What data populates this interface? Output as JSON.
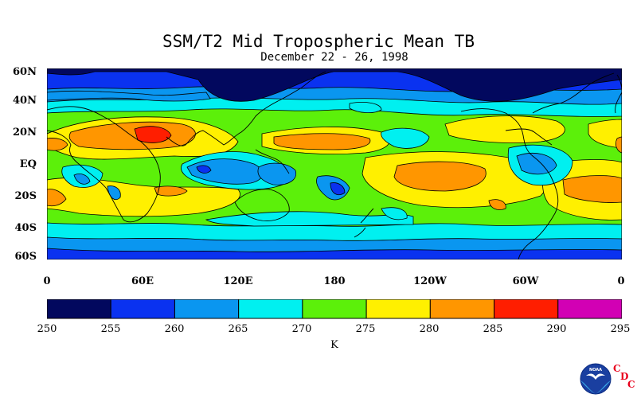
{
  "title": "SSM/T2 Mid Tropospheric Mean TB",
  "subtitle": "December 22 - 26, 1998",
  "lat_labels": [
    "60N",
    "40N",
    "20N",
    "EQ",
    "20S",
    "40S",
    "60S"
  ],
  "lon_labels": [
    "0",
    "60E",
    "120E",
    "180",
    "120W",
    "60W",
    "0"
  ],
  "colorbar": {
    "ticks": [
      "250",
      "255",
      "260",
      "265",
      "270",
      "275",
      "280",
      "285",
      "290",
      "295"
    ],
    "unit": "K",
    "colors": [
      "#02085e",
      "#0a32f0",
      "#0a96f0",
      "#00f0f0",
      "#5cf00a",
      "#fff000",
      "#ff9600",
      "#ff1e00",
      "#d200b4"
    ]
  },
  "logo": {
    "noaa_text": "NOAA",
    "cdc_letters": [
      "C",
      "D",
      "C"
    ],
    "icon": "noaa-seagull-logo"
  }
}
